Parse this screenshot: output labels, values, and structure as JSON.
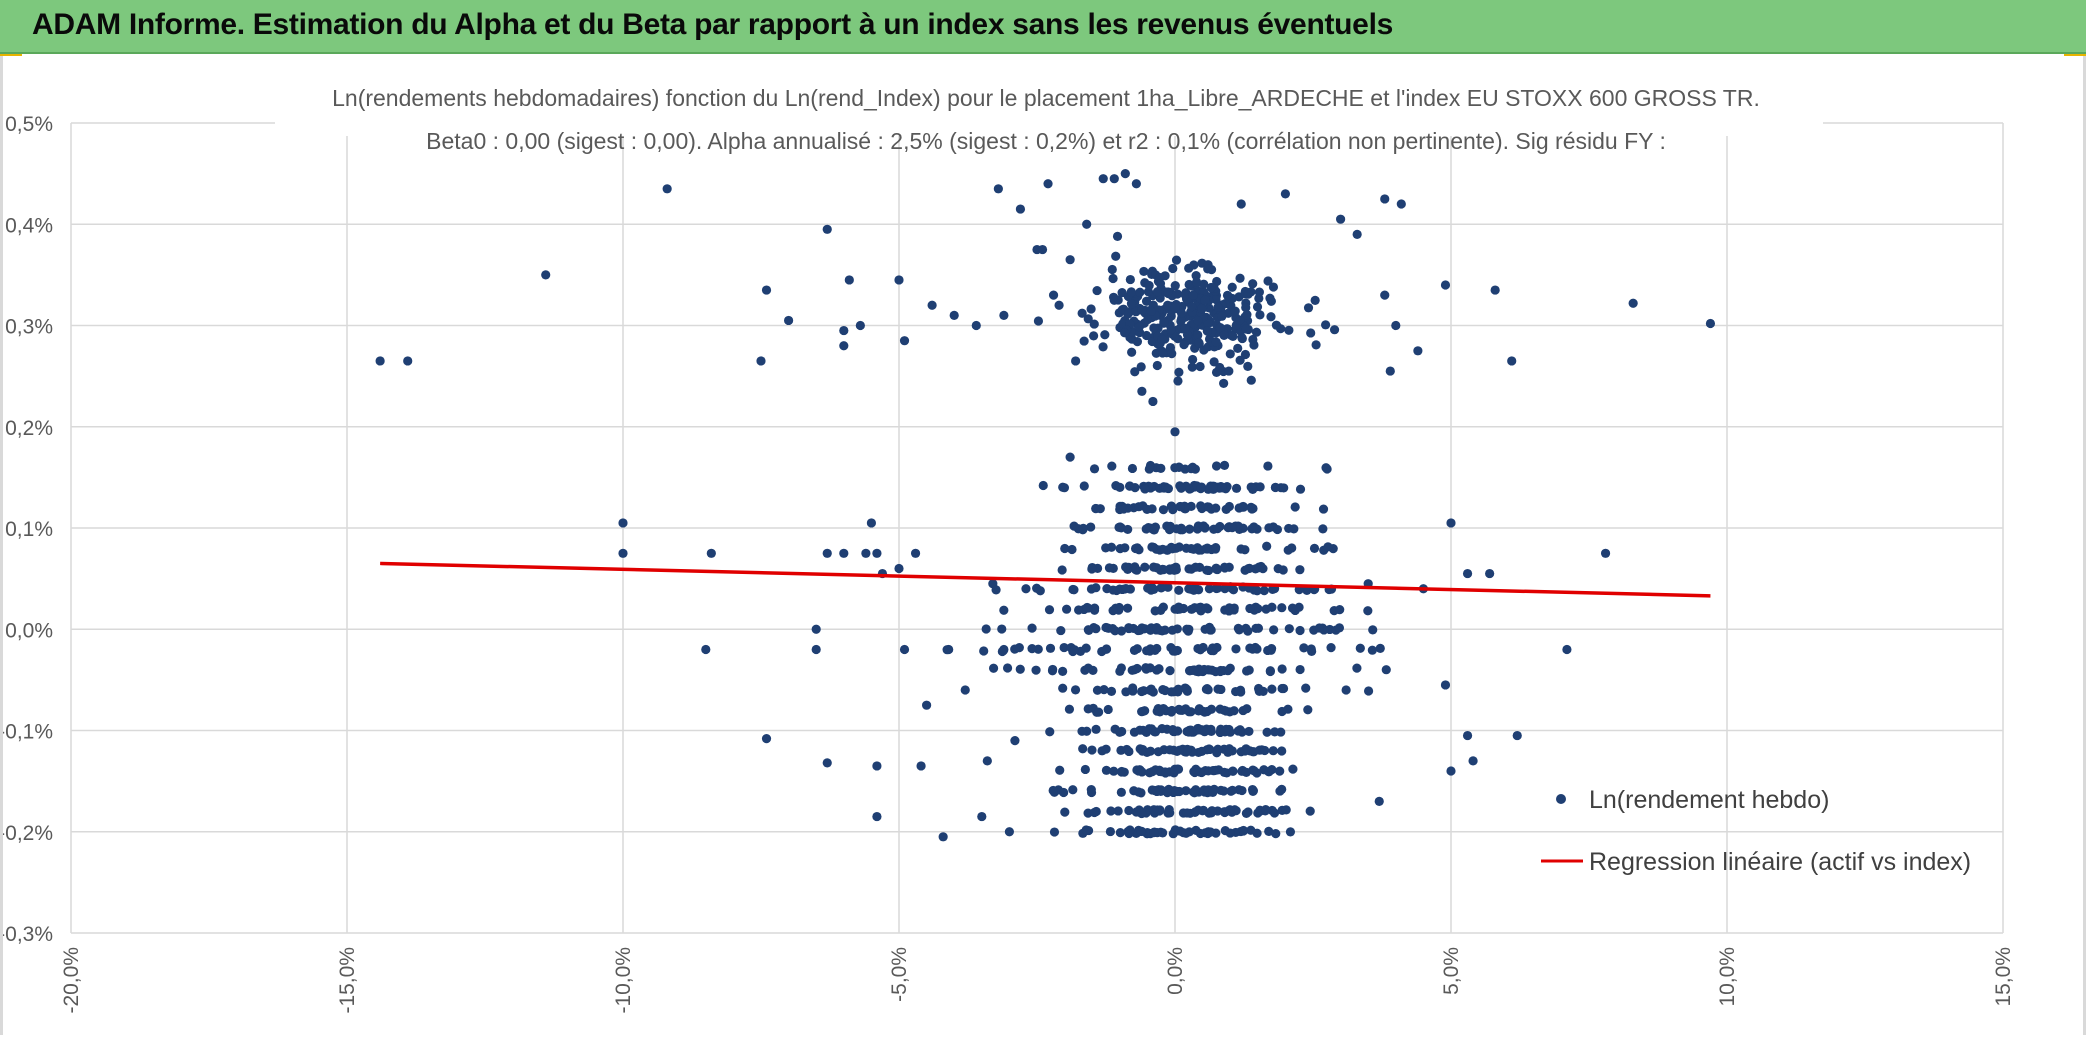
{
  "header": {
    "title": "ADAM Informe. Estimation du Alpha et du Beta par rapport à un index sans les revenus éventuels"
  },
  "colors": {
    "header_bg": "#7dc87d",
    "points": "#1f3f73",
    "regression": "#e00000",
    "grid": "#d9d9d9",
    "corner_accent": "#e8b400"
  },
  "chart_data": {
    "type": "scatter",
    "title_line1": "Ln(rendements hebdomadaires) fonction du Ln(rend_Index) pour le placement 1ha_Libre_ARDECHE et l'index EU STOXX 600 GROSS TR.",
    "title_line2": "Beta0 : 0,00 (sigest : 0,00). Alpha annualisé : 2,5% (sigest : 0,2%) et r2 : 0,1% (corrélation non pertinente). Sig résidu FY :",
    "xlim": [
      -0.2,
      0.15
    ],
    "ylim": [
      -0.003,
      0.005
    ],
    "x_ticks": [
      -0.2,
      -0.15,
      -0.1,
      -0.05,
      0.0,
      0.05,
      0.1,
      0.15
    ],
    "x_tick_labels": [
      "-20,0%",
      "-15,0%",
      "-10,0%",
      "-5,0%",
      "0,0%",
      "5,0%",
      "10,0%",
      "15,0%"
    ],
    "y_ticks": [
      0.005,
      0.004,
      0.003,
      0.002,
      0.001,
      0.0,
      -0.001,
      -0.002,
      -0.003
    ],
    "y_tick_labels": [
      "0,5%",
      "0,4%",
      "0,3%",
      "0,2%",
      "0,1%",
      "0,0%",
      "-0,1%",
      "-0,2%",
      "-0,3%"
    ],
    "grid": true,
    "legend_position": "right",
    "series": [
      {
        "name": "Ln(rendement hebdo)",
        "kind": "scatter",
        "points": [
          [
            -0.144,
            0.00265
          ],
          [
            -0.139,
            0.00265
          ],
          [
            -0.114,
            0.0035
          ],
          [
            -0.092,
            0.00435
          ],
          [
            -0.1,
            0.00105
          ],
          [
            -0.1,
            0.00075
          ],
          [
            -0.084,
            0.00075
          ],
          [
            -0.085,
            -0.0002
          ],
          [
            -0.074,
            0.00335
          ],
          [
            -0.07,
            0.00305
          ],
          [
            -0.075,
            0.00265
          ],
          [
            -0.074,
            -0.00108
          ],
          [
            -0.065,
            0.0
          ],
          [
            -0.065,
            -0.0002
          ],
          [
            -0.063,
            0.00395
          ],
          [
            -0.063,
            -0.00132
          ],
          [
            -0.063,
            0.00075
          ],
          [
            -0.06,
            0.00075
          ],
          [
            -0.059,
            0.00345
          ],
          [
            -0.06,
            0.00295
          ],
          [
            -0.06,
            0.0028
          ],
          [
            -0.057,
            0.003
          ],
          [
            -0.055,
            0.00105
          ],
          [
            -0.056,
            0.00075
          ],
          [
            -0.054,
            0.00075
          ],
          [
            -0.053,
            0.00055
          ],
          [
            -0.054,
            -0.00135
          ],
          [
            -0.054,
            -0.00185
          ],
          [
            -0.05,
            0.00345
          ],
          [
            -0.05,
            0.0006
          ],
          [
            -0.049,
            0.00285
          ],
          [
            -0.049,
            -0.0002
          ],
          [
            -0.047,
            0.00075
          ],
          [
            -0.046,
            -0.00135
          ],
          [
            -0.045,
            -0.00075
          ],
          [
            -0.044,
            0.0032
          ],
          [
            -0.042,
            -0.00205
          ],
          [
            -0.041,
            -0.0002
          ],
          [
            -0.04,
            0.0031
          ],
          [
            -0.038,
            -0.0006
          ],
          [
            -0.036,
            0.003
          ],
          [
            -0.035,
            -0.00185
          ],
          [
            -0.034,
            -0.0013
          ],
          [
            -0.033,
            0.00045
          ],
          [
            -0.032,
            0.00435
          ],
          [
            -0.031,
            0.0031
          ],
          [
            -0.031,
            -0.0002
          ],
          [
            -0.03,
            -0.002
          ],
          [
            -0.029,
            -0.0011
          ],
          [
            -0.028,
            0.00415
          ],
          [
            -0.027,
            0.0004
          ],
          [
            -0.025,
            0.00375
          ],
          [
            -0.024,
            0.00375
          ],
          [
            -0.023,
            0.0044
          ],
          [
            -0.022,
            0.0033
          ],
          [
            -0.021,
            0.0032
          ],
          [
            -0.019,
            0.0017
          ],
          [
            -0.019,
            0.00365
          ],
          [
            -0.018,
            0.00265
          ],
          [
            -0.016,
            0.004
          ],
          [
            -0.013,
            0.00445
          ],
          [
            -0.011,
            0.00445
          ],
          [
            -0.009,
            0.0045
          ],
          [
            -0.007,
            0.0044
          ],
          [
            -0.006,
            0.00235
          ],
          [
            -0.004,
            0.00225
          ],
          [
            0.0,
            0.00195
          ],
          [
            0.012,
            0.0042
          ],
          [
            0.02,
            0.0043
          ],
          [
            0.03,
            0.00405
          ],
          [
            0.033,
            0.0039
          ],
          [
            0.038,
            0.00425
          ],
          [
            0.041,
            0.0042
          ],
          [
            0.038,
            0.0033
          ],
          [
            0.039,
            0.00255
          ],
          [
            0.04,
            0.003
          ],
          [
            0.044,
            0.00275
          ],
          [
            0.045,
            0.0004
          ],
          [
            0.049,
            0.0034
          ],
          [
            0.049,
            -0.00055
          ],
          [
            0.05,
            0.00105
          ],
          [
            0.05,
            -0.0014
          ],
          [
            0.053,
            0.00055
          ],
          [
            0.053,
            -0.00105
          ],
          [
            0.054,
            -0.0013
          ],
          [
            0.057,
            0.00055
          ],
          [
            0.058,
            0.00335
          ],
          [
            0.061,
            0.00265
          ],
          [
            0.062,
            -0.00105
          ],
          [
            0.071,
            -0.0002
          ],
          [
            0.078,
            0.00075
          ],
          [
            0.083,
            0.00322
          ],
          [
            0.097,
            0.00302
          ],
          [
            0.037,
            -0.0017
          ],
          [
            0.035,
            0.00045
          ],
          [
            0.031,
            -0.0006
          ]
        ]
      },
      {
        "name": "Regression linéaire (actif vs index)",
        "kind": "line",
        "x": [
          -0.144,
          0.097
        ],
        "y": [
          0.00065,
          0.00033
        ]
      }
    ]
  }
}
